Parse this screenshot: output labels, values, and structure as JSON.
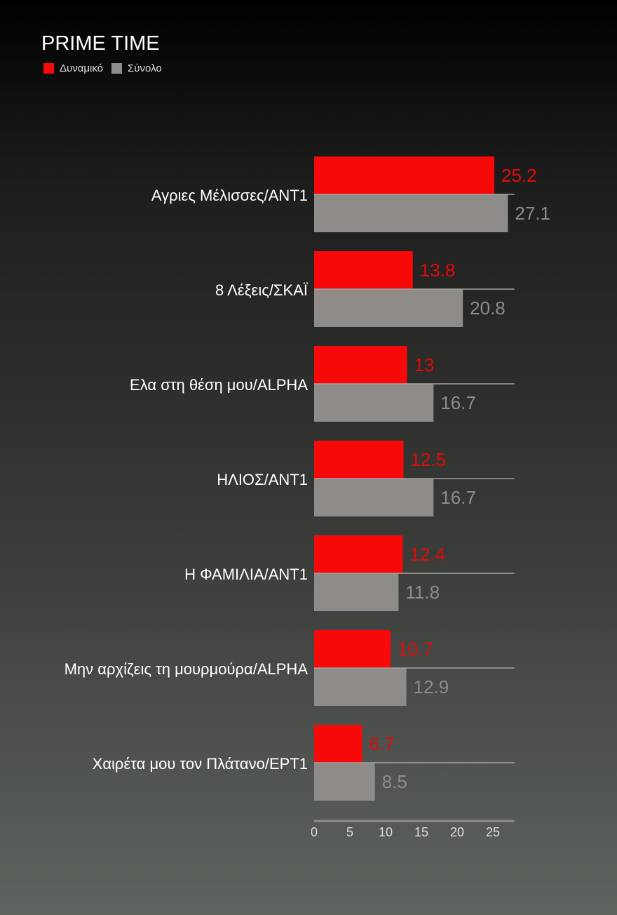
{
  "chart_data": {
    "type": "bar",
    "orientation": "horizontal",
    "title": "PRIME TIME",
    "categories": [
      "Αγριες Μέλισσες/ANT1",
      "8 Λέξεις/ΣΚΑΪ",
      "Ελα στη θέση μου/ALPHA",
      "ΗΛΙΟΣ/ΑΝΤ1",
      "Η ΦΑΜΙΛΙΑ/ΑΝΤ1",
      "Μην αρχίζεις τη μουρμούρα/ALPHA",
      "Χαιρέτα μου τον Πλάτανο/ΕΡΤ1"
    ],
    "series": [
      {
        "name": "Δυναμικό",
        "color": "#f70909",
        "label_color": "#e00a0a",
        "values": [
          25.2,
          13.8,
          13,
          12.5,
          12.4,
          10.7,
          6.7
        ]
      },
      {
        "name": "Σύνολο",
        "color": "#8f8b89",
        "label_color": "#8f8b89",
        "values": [
          27.1,
          20.8,
          16.7,
          16.7,
          11.8,
          12.9,
          8.5
        ]
      }
    ],
    "xlim": [
      0,
      28
    ],
    "xticks": [
      "0",
      "5",
      "10",
      "15",
      "20",
      "25"
    ],
    "grid": false,
    "legend": "top-left"
  }
}
